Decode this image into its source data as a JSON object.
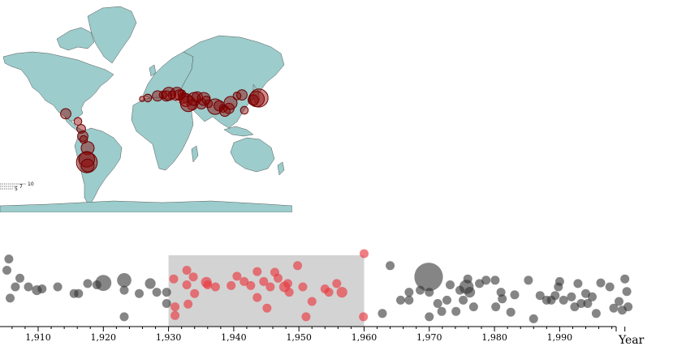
{
  "map": {
    "land_color": "#9ccccc",
    "quake_color": "#8b0000",
    "legend": {
      "labels": [
        "10",
        "7",
        "5"
      ]
    },
    "events": [
      {
        "lon": -99,
        "lat": 19,
        "mag": 6.5
      },
      {
        "lon": -84,
        "lat": 10,
        "mag": 6
      },
      {
        "lon": -80,
        "lat": 1,
        "mag": 6.2
      },
      {
        "lon": -78,
        "lat": -8,
        "mag": 6.5
      },
      {
        "lon": -77,
        "lat": -12,
        "mag": 6
      },
      {
        "lon": -72,
        "lat": -22,
        "mag": 7
      },
      {
        "lon": -73,
        "lat": -34,
        "mag": 7.5
      },
      {
        "lon": -73,
        "lat": -37,
        "mag": 8.5
      },
      {
        "lon": -72,
        "lat": -40,
        "mag": 7
      },
      {
        "lon": -5,
        "lat": 35,
        "mag": 5.5
      },
      {
        "lon": 2,
        "lat": 36,
        "mag": 6
      },
      {
        "lon": 14,
        "lat": 38,
        "mag": 6.5
      },
      {
        "lon": 21,
        "lat": 39,
        "mag": 6
      },
      {
        "lon": 25,
        "lat": 38,
        "mag": 6.5
      },
      {
        "lon": 28,
        "lat": 40,
        "mag": 7
      },
      {
        "lon": 32,
        "lat": 39,
        "mag": 6
      },
      {
        "lon": 38,
        "lat": 40,
        "mag": 7
      },
      {
        "lon": 41,
        "lat": 39,
        "mag": 6.5
      },
      {
        "lon": 44,
        "lat": 40,
        "mag": 6
      },
      {
        "lon": 46,
        "lat": 36,
        "mag": 6.5
      },
      {
        "lon": 49,
        "lat": 34,
        "mag": 7
      },
      {
        "lon": 52,
        "lat": 30,
        "mag": 7.5
      },
      {
        "lon": 57,
        "lat": 29,
        "mag": 6.5
      },
      {
        "lon": 59,
        "lat": 35,
        "mag": 7
      },
      {
        "lon": 63,
        "lat": 37,
        "mag": 6.5
      },
      {
        "lon": 68,
        "lat": 30,
        "mag": 6.5
      },
      {
        "lon": 71,
        "lat": 35,
        "mag": 7
      },
      {
        "lon": 74,
        "lat": 34,
        "mag": 6
      },
      {
        "lon": 77,
        "lat": 30,
        "mag": 6
      },
      {
        "lon": 85,
        "lat": 27,
        "mag": 7.5
      },
      {
        "lon": 90,
        "lat": 28,
        "mag": 6.5
      },
      {
        "lon": 95,
        "lat": 25,
        "mag": 6
      },
      {
        "lon": 97,
        "lat": 22,
        "mag": 6.5
      },
      {
        "lon": 102,
        "lat": 25,
        "mag": 6.5
      },
      {
        "lon": 104,
        "lat": 31,
        "mag": 7
      },
      {
        "lon": 112,
        "lat": 38,
        "mag": 6
      },
      {
        "lon": 118,
        "lat": 39,
        "mag": 6.5
      },
      {
        "lon": 121,
        "lat": 23,
        "mag": 6
      },
      {
        "lon": 132,
        "lat": 34,
        "mag": 6.5
      },
      {
        "lon": 136,
        "lat": 35,
        "mag": 7.5
      },
      {
        "lon": 139,
        "lat": 36,
        "mag": 8
      }
    ]
  },
  "timeline": {
    "axis_title": "Year",
    "ticks": [
      {
        "year": 1910,
        "label": "1,910"
      },
      {
        "year": 1920,
        "label": "1,920"
      },
      {
        "year": 1930,
        "label": "1,930"
      },
      {
        "year": 1940,
        "label": "1,940"
      },
      {
        "year": 1950,
        "label": "1,950"
      },
      {
        "year": 1960,
        "label": "1,960"
      },
      {
        "year": 1970,
        "label": "1,970"
      },
      {
        "year": 1980,
        "label": "1,980"
      },
      {
        "year": 1990,
        "label": "1,990"
      }
    ],
    "brush": {
      "start": 1930,
      "end": 1960
    },
    "selected_color": "#e8393f",
    "unselected_color": "#333333",
    "brush_color": "#d3d3d3",
    "points": [
      {
        "year": 1905.5,
        "lvl": 0.92,
        "size": 1.0
      },
      {
        "year": 1905.2,
        "lvl": 0.75,
        "size": 1.0
      },
      {
        "year": 1906.5,
        "lvl": 0.5,
        "size": 1.0
      },
      {
        "year": 1905.7,
        "lvl": 0.33,
        "size": 1.0
      },
      {
        "year": 1907.2,
        "lvl": 0.63,
        "size": 1.0
      },
      {
        "year": 1908.5,
        "lvl": 0.5,
        "size": 1.0
      },
      {
        "year": 1909.8,
        "lvl": 0.45,
        "size": 1.1
      },
      {
        "year": 1910.6,
        "lvl": 0.47,
        "size": 1.0
      },
      {
        "year": 1913,
        "lvl": 0.5,
        "size": 1.0
      },
      {
        "year": 1915.5,
        "lvl": 0.4,
        "size": 1.0
      },
      {
        "year": 1916.2,
        "lvl": 0.4,
        "size": 1.0
      },
      {
        "year": 1917.6,
        "lvl": 0.55,
        "size": 1.0
      },
      {
        "year": 1919,
        "lvl": 0.53,
        "size": 1.0
      },
      {
        "year": 1920,
        "lvl": 0.56,
        "size": 1.8
      },
      {
        "year": 1923.2,
        "lvl": 0.6,
        "size": 1.6
      },
      {
        "year": 1923.2,
        "lvl": 0.45,
        "size": 1.0
      },
      {
        "year": 1923.2,
        "lvl": 0.05,
        "size": 1.0
      },
      {
        "year": 1925.5,
        "lvl": 0.4,
        "size": 1.0
      },
      {
        "year": 1927.2,
        "lvl": 0.55,
        "size": 1.2
      },
      {
        "year": 1928.2,
        "lvl": 0.42,
        "size": 1.0
      },
      {
        "year": 1929.7,
        "lvl": 0.42,
        "size": 1.0
      },
      {
        "year": 1929.7,
        "lvl": 0.25,
        "size": 1.0
      },
      {
        "year": 1930.8,
        "lvl": 0.62,
        "size": 1.0
      },
      {
        "year": 1931,
        "lvl": 0.2,
        "size": 1.0
      },
      {
        "year": 1931,
        "lvl": 0.07,
        "size": 1.0
      },
      {
        "year": 1932.8,
        "lvl": 0.75,
        "size": 1.0
      },
      {
        "year": 1932.8,
        "lvl": 0.53,
        "size": 1.0
      },
      {
        "year": 1933,
        "lvl": 0.24,
        "size": 1.0
      },
      {
        "year": 1933.8,
        "lvl": 0.65,
        "size": 1.0
      },
      {
        "year": 1934,
        "lvl": 0.4,
        "size": 1.0
      },
      {
        "year": 1935.8,
        "lvl": 0.57,
        "size": 1.2
      },
      {
        "year": 1936,
        "lvl": 0.53,
        "size": 1.0
      },
      {
        "year": 1937.2,
        "lvl": 0.5,
        "size": 1.0
      },
      {
        "year": 1939.6,
        "lvl": 0.52,
        "size": 1.0
      },
      {
        "year": 1940.5,
        "lvl": 0.66,
        "size": 1.0
      },
      {
        "year": 1941.6,
        "lvl": 0.58,
        "size": 1.0
      },
      {
        "year": 1942.6,
        "lvl": 0.52,
        "size": 1.0
      },
      {
        "year": 1943.6,
        "lvl": 0.73,
        "size": 1.0
      },
      {
        "year": 1943.6,
        "lvl": 0.34,
        "size": 1.0
      },
      {
        "year": 1944.6,
        "lvl": 0.58,
        "size": 1.0
      },
      {
        "year": 1945.1,
        "lvl": 0.18,
        "size": 1.0
      },
      {
        "year": 1945.6,
        "lvl": 0.5,
        "size": 1.0
      },
      {
        "year": 1946.3,
        "lvl": 0.72,
        "size": 1.0
      },
      {
        "year": 1946.8,
        "lvl": 0.63,
        "size": 1.0
      },
      {
        "year": 1947.8,
        "lvl": 0.5,
        "size": 1.2
      },
      {
        "year": 1948.3,
        "lvl": 0.55,
        "size": 1.0
      },
      {
        "year": 1948.5,
        "lvl": 0.42,
        "size": 1.0
      },
      {
        "year": 1949.8,
        "lvl": 0.82,
        "size": 1.0
      },
      {
        "year": 1950.6,
        "lvl": 0.5,
        "size": 1.0
      },
      {
        "year": 1951.1,
        "lvl": 0.05,
        "size": 1.0
      },
      {
        "year": 1952,
        "lvl": 0.28,
        "size": 1.0
      },
      {
        "year": 1954,
        "lvl": 0.47,
        "size": 1.0
      },
      {
        "year": 1954.6,
        "lvl": 0.42,
        "size": 1.0
      },
      {
        "year": 1955.8,
        "lvl": 0.55,
        "size": 1.0
      },
      {
        "year": 1956.6,
        "lvl": 0.42,
        "size": 1.2
      },
      {
        "year": 1959.9,
        "lvl": 0.05,
        "size": 1.0
      },
      {
        "year": 1960,
        "lvl": 1.0,
        "size": 1.0
      },
      {
        "year": 1962.8,
        "lvl": 0.1,
        "size": 1.0
      },
      {
        "year": 1964,
        "lvl": 0.82,
        "size": 1.0
      },
      {
        "year": 1965.6,
        "lvl": 0.3,
        "size": 1.0
      },
      {
        "year": 1966.9,
        "lvl": 0.42,
        "size": 1.0
      },
      {
        "year": 1966.9,
        "lvl": 0.3,
        "size": 1.0
      },
      {
        "year": 1968.6,
        "lvl": 0.45,
        "size": 1.0
      },
      {
        "year": 1969.9,
        "lvl": 0.65,
        "size": 3.2
      },
      {
        "year": 1970,
        "lvl": 0.42,
        "size": 1.0
      },
      {
        "year": 1970,
        "lvl": 0.05,
        "size": 1.0
      },
      {
        "year": 1971.3,
        "lvl": 0.25,
        "size": 1.0
      },
      {
        "year": 1971.9,
        "lvl": 0.13,
        "size": 1.0
      },
      {
        "year": 1972.7,
        "lvl": 0.3,
        "size": 1.0
      },
      {
        "year": 1973.2,
        "lvl": 0.53,
        "size": 1.0
      },
      {
        "year": 1974.1,
        "lvl": 0.13,
        "size": 1.0
      },
      {
        "year": 1974.7,
        "lvl": 0.45,
        "size": 1.0
      },
      {
        "year": 1975.2,
        "lvl": 0.3,
        "size": 1.0
      },
      {
        "year": 1975.7,
        "lvl": 0.5,
        "size": 1.6
      },
      {
        "year": 1975.9,
        "lvl": 0.62,
        "size": 1.0
      },
      {
        "year": 1976.2,
        "lvl": 0.42,
        "size": 1.2
      },
      {
        "year": 1976.8,
        "lvl": 0.2,
        "size": 1.0
      },
      {
        "year": 1977.7,
        "lvl": 0.55,
        "size": 1.0
      },
      {
        "year": 1978.7,
        "lvl": 0.6,
        "size": 1.0
      },
      {
        "year": 1980.1,
        "lvl": 0.6,
        "size": 1.0
      },
      {
        "year": 1980.2,
        "lvl": 0.2,
        "size": 1.0
      },
      {
        "year": 1981,
        "lvl": 0.42,
        "size": 1.0
      },
      {
        "year": 1981.2,
        "lvl": 0.32,
        "size": 1.0
      },
      {
        "year": 1982.5,
        "lvl": 0.12,
        "size": 1.0
      },
      {
        "year": 1983.1,
        "lvl": 0.38,
        "size": 1.0
      },
      {
        "year": 1985.2,
        "lvl": 0.6,
        "size": 1.0
      },
      {
        "year": 1986,
        "lvl": 0.02,
        "size": 1.0
      },
      {
        "year": 1987,
        "lvl": 0.37,
        "size": 1.0
      },
      {
        "year": 1988,
        "lvl": 0.3,
        "size": 1.0
      },
      {
        "year": 1988.7,
        "lvl": 0.3,
        "size": 1.0
      },
      {
        "year": 1989.3,
        "lvl": 0.37,
        "size": 1.0
      },
      {
        "year": 1989.8,
        "lvl": 0.5,
        "size": 1.0
      },
      {
        "year": 1990,
        "lvl": 0.58,
        "size": 1.0
      },
      {
        "year": 1990.6,
        "lvl": 0.3,
        "size": 1.0
      },
      {
        "year": 1991.8,
        "lvl": 0.35,
        "size": 1.0
      },
      {
        "year": 1992.3,
        "lvl": 0.2,
        "size": 1.0
      },
      {
        "year": 1992.8,
        "lvl": 0.55,
        "size": 1.0
      },
      {
        "year": 1993.3,
        "lvl": 0.25,
        "size": 1.0
      },
      {
        "year": 1994,
        "lvl": 0.4,
        "size": 1.0
      },
      {
        "year": 1994.3,
        "lvl": 0.25,
        "size": 1.0
      },
      {
        "year": 1995,
        "lvl": 0.35,
        "size": 1.0
      },
      {
        "year": 1995.6,
        "lvl": 0.1,
        "size": 1.0
      },
      {
        "year": 1996.3,
        "lvl": 0.56,
        "size": 1.0
      },
      {
        "year": 1997.7,
        "lvl": 0.5,
        "size": 1.0
      },
      {
        "year": 1998.3,
        "lvl": 0.18,
        "size": 1.0
      },
      {
        "year": 1999.1,
        "lvl": 0.28,
        "size": 1.0
      },
      {
        "year": 1999.6,
        "lvl": 0.15,
        "size": 1.0
      },
      {
        "year": 2000,
        "lvl": 0.62,
        "size": 1.0
      },
      {
        "year": 2000.3,
        "lvl": 0.43,
        "size": 1.0
      },
      {
        "year": 2000.5,
        "lvl": 0.2,
        "size": 1.0
      }
    ]
  }
}
